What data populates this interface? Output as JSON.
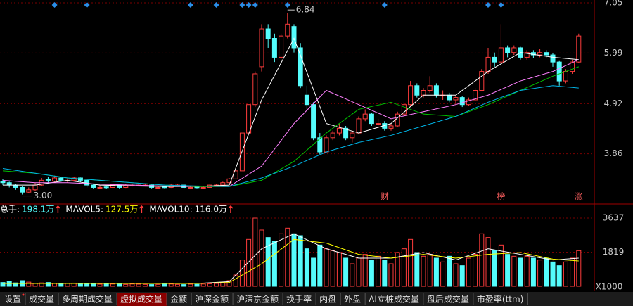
{
  "chart_data": {
    "type": "candlestick",
    "price": {
      "ohlc": [
        [
          3.28,
          3.32,
          3.2,
          3.25
        ],
        [
          3.25,
          3.27,
          3.15,
          3.2
        ],
        [
          3.2,
          3.22,
          3.1,
          3.15
        ],
        [
          3.15,
          3.17,
          3.0,
          3.05
        ],
        [
          3.05,
          3.15,
          3.03,
          3.1
        ],
        [
          3.1,
          3.25,
          3.08,
          3.2
        ],
        [
          3.2,
          3.35,
          3.18,
          3.3
        ],
        [
          3.32,
          3.38,
          3.25,
          3.3
        ],
        [
          3.28,
          3.4,
          3.26,
          3.35
        ],
        [
          3.35,
          3.37,
          3.27,
          3.3
        ],
        [
          3.3,
          3.34,
          3.25,
          3.3
        ],
        [
          3.3,
          3.38,
          3.28,
          3.35
        ],
        [
          3.35,
          3.36,
          3.26,
          3.3
        ],
        [
          3.3,
          3.31,
          3.15,
          3.2
        ],
        [
          3.2,
          3.22,
          3.12,
          3.15
        ],
        [
          3.15,
          3.2,
          3.12,
          3.15
        ],
        [
          3.16,
          3.18,
          3.12,
          3.15
        ],
        [
          3.15,
          3.23,
          3.14,
          3.2
        ],
        [
          3.2,
          3.21,
          3.13,
          3.15
        ],
        [
          3.15,
          3.22,
          3.14,
          3.2
        ],
        [
          3.2,
          3.22,
          3.17,
          3.2
        ],
        [
          3.19,
          3.23,
          3.17,
          3.2
        ],
        [
          3.2,
          3.22,
          3.17,
          3.2
        ],
        [
          3.2,
          3.21,
          3.13,
          3.15
        ],
        [
          3.15,
          3.18,
          3.13,
          3.15
        ],
        [
          3.16,
          3.18,
          3.13,
          3.15
        ],
        [
          3.15,
          3.22,
          3.14,
          3.2
        ],
        [
          3.2,
          3.22,
          3.17,
          3.2
        ],
        [
          3.2,
          3.21,
          3.13,
          3.15
        ],
        [
          3.15,
          3.17,
          3.12,
          3.15
        ],
        [
          3.16,
          3.18,
          3.13,
          3.15
        ],
        [
          3.15,
          3.17,
          3.13,
          3.15
        ],
        [
          3.15,
          3.22,
          3.14,
          3.2
        ],
        [
          3.2,
          3.22,
          3.17,
          3.2
        ],
        [
          3.2,
          3.27,
          3.18,
          3.25
        ],
        [
          3.25,
          3.35,
          3.24,
          3.33
        ],
        [
          3.33,
          3.55,
          3.32,
          3.5
        ],
        [
          3.5,
          4.3,
          3.5,
          4.3
        ],
        [
          4.3,
          4.9,
          4.3,
          4.9
        ],
        [
          4.9,
          5.6,
          4.85,
          5.55
        ],
        [
          5.7,
          6.6,
          5.6,
          6.5
        ],
        [
          6.5,
          6.6,
          6.1,
          6.3
        ],
        [
          6.3,
          6.4,
          5.8,
          5.9
        ],
        [
          5.9,
          6.4,
          5.85,
          6.35
        ],
        [
          6.35,
          6.84,
          6.3,
          6.6
        ],
        [
          6.55,
          6.6,
          6.0,
          6.1
        ],
        [
          6.1,
          6.2,
          5.25,
          5.3
        ],
        [
          5.1,
          5.3,
          4.8,
          4.9
        ],
        [
          4.9,
          4.95,
          4.15,
          4.2
        ],
        [
          4.2,
          4.3,
          3.85,
          3.9
        ],
        [
          3.9,
          4.25,
          3.88,
          4.2
        ],
        [
          4.2,
          4.35,
          4.15,
          4.3
        ],
        [
          4.3,
          4.5,
          4.25,
          4.4
        ],
        [
          4.4,
          4.45,
          4.15,
          4.2
        ],
        [
          4.2,
          4.35,
          4.1,
          4.3
        ],
        [
          4.3,
          4.65,
          4.28,
          4.6
        ],
        [
          4.6,
          4.8,
          4.55,
          4.7
        ],
        [
          4.7,
          4.72,
          4.45,
          4.5
        ],
        [
          4.5,
          4.6,
          4.4,
          4.5
        ],
        [
          4.5,
          4.55,
          4.35,
          4.4
        ],
        [
          4.4,
          4.5,
          4.35,
          4.45
        ],
        [
          4.45,
          4.75,
          4.42,
          4.7
        ],
        [
          4.7,
          4.95,
          4.68,
          4.9
        ],
        [
          4.9,
          5.4,
          4.88,
          5.3
        ],
        [
          5.3,
          5.35,
          5.05,
          5.1
        ],
        [
          5.1,
          5.25,
          5.05,
          5.2
        ],
        [
          5.2,
          5.5,
          5.15,
          5.3
        ],
        [
          5.3,
          5.35,
          5.05,
          5.1
        ],
        [
          5.1,
          5.2,
          5.0,
          5.1
        ],
        [
          5.1,
          5.15,
          4.95,
          5.0
        ],
        [
          5.0,
          5.1,
          4.9,
          5.05
        ],
        [
          5.05,
          5.08,
          4.85,
          4.9
        ],
        [
          4.9,
          5.05,
          4.88,
          5.0
        ],
        [
          5.0,
          5.25,
          4.98,
          5.2
        ],
        [
          5.2,
          5.65,
          5.18,
          5.6
        ],
        [
          5.6,
          6.1,
          5.55,
          5.9
        ],
        [
          5.9,
          6.0,
          5.7,
          5.8
        ],
        [
          5.8,
          6.6,
          5.78,
          6.1
        ],
        [
          6.1,
          6.15,
          5.9,
          6.0
        ],
        [
          6.0,
          6.15,
          5.95,
          6.1
        ],
        [
          6.1,
          6.12,
          5.85,
          5.9
        ],
        [
          5.9,
          6.05,
          5.85,
          6.0
        ],
        [
          6.0,
          6.05,
          5.88,
          5.95
        ],
        [
          5.95,
          6.08,
          5.9,
          6.0
        ],
        [
          6.0,
          6.05,
          5.9,
          5.95
        ],
        [
          5.95,
          5.98,
          5.7,
          5.8
        ],
        [
          5.8,
          5.82,
          5.3,
          5.4
        ],
        [
          5.4,
          5.65,
          5.35,
          5.6
        ],
        [
          5.6,
          5.85,
          5.55,
          5.8
        ],
        [
          5.8,
          6.4,
          5.78,
          6.35
        ]
      ],
      "ylim": [
        2.8,
        7.11
      ],
      "yticks": [
        7.05,
        5.99,
        4.92,
        3.86
      ],
      "up_color": "#ff3c3c",
      "down_color": "#54fcfc",
      "high_label": 6.84,
      "high_index": 44,
      "low_label": {
        "value": 3,
        "label": "3.00"
      },
      "low_index": 3,
      "ma": {
        "x": [
          0,
          5,
          10,
          15,
          20,
          25,
          30,
          35,
          40,
          45,
          50,
          55,
          60,
          65,
          70,
          75,
          80,
          85,
          89
        ],
        "series": [
          {
            "color": "#ffffff",
            "values": [
              3.2,
              3.2,
              3.3,
              3.2,
              3.18,
              3.17,
              3.17,
              3.2,
              5.0,
              6.3,
              4.5,
              4.3,
              4.5,
              5.1,
              5.1,
              5.6,
              6.0,
              5.9,
              5.85
            ]
          },
          {
            "color": "#ff80ff",
            "values": [
              3.3,
              3.25,
              3.25,
              3.22,
              3.2,
              3.18,
              3.17,
              3.17,
              3.6,
              4.5,
              5.2,
              4.9,
              4.6,
              4.75,
              4.9,
              5.1,
              5.4,
              5.6,
              5.85
            ]
          },
          {
            "color": "#00c000",
            "values": [
              3.5,
              3.45,
              3.35,
              3.3,
              3.25,
              3.2,
              3.17,
              3.17,
              3.3,
              3.7,
              4.3,
              4.8,
              4.95,
              4.7,
              4.65,
              4.9,
              5.2,
              5.5,
              5.7
            ]
          },
          {
            "color": "#00b4e6",
            "values": [
              3.55,
              3.45,
              3.35,
              3.3,
              3.25,
              3.2,
              3.18,
              3.17,
              3.35,
              3.6,
              3.9,
              4.1,
              4.25,
              4.45,
              4.65,
              4.95,
              5.2,
              5.3,
              5.25
            ]
          }
        ]
      }
    },
    "event_markers": [
      8,
      13,
      29,
      33,
      37,
      38,
      39,
      44,
      59,
      75,
      77
    ],
    "marker_color": "#2a8ee8",
    "tags": [
      {
        "index": 59,
        "label": "财"
      },
      {
        "index": 77,
        "label": "榜"
      },
      {
        "index": 89,
        "label": "涨"
      }
    ],
    "volume": {
      "values": [
        200,
        250,
        180,
        300,
        220,
        150,
        180,
        200,
        160,
        140,
        150,
        170,
        130,
        150,
        120,
        110,
        130,
        120,
        110,
        100,
        120,
        110,
        100,
        90,
        100,
        110,
        120,
        100,
        90,
        110,
        100,
        120,
        130,
        150,
        200,
        300,
        600,
        1400,
        2500,
        3637,
        3000,
        2600,
        2400,
        2800,
        3100,
        2800,
        2700,
        2000,
        1500,
        2200,
        2000,
        1900,
        1800,
        1500,
        1200,
        1500,
        1700,
        1400,
        1600,
        1400,
        1200,
        1800,
        2000,
        2500,
        1800,
        1600,
        1700,
        1500,
        1300,
        1600,
        1200,
        1100,
        1500,
        1700,
        2800,
        2600,
        1900,
        2200,
        1700,
        1600,
        1500,
        1600,
        1500,
        1400,
        1500,
        1300,
        1100,
        1300,
        1500,
        1900
      ],
      "ylim": [
        0,
        3937
      ],
      "yticks": [
        3637,
        1819
      ],
      "unit": "X1000",
      "ma": {
        "series": [
          {
            "color": "#ffffff",
            "values": [
              150,
              150,
              150,
              150,
              150,
              150,
              150,
              250,
              2000,
              2800,
              2000,
              1500,
              1500,
              1800,
              1400,
              2000,
              1700,
              1400,
              1500
            ]
          },
          {
            "color": "#ffff00",
            "values": [
              150,
              150,
              150,
              150,
              150,
              150,
              150,
              200,
              1200,
              2500,
              2300,
              1700,
              1500,
              1700,
              1500,
              1700,
              1800,
              1450,
              1350
            ]
          }
        ]
      },
      "legend": [
        {
          "label": "总手:",
          "value": "198.1万",
          "color": "#54fcfc"
        },
        {
          "label": "MAVOL5:",
          "value": "127.5万",
          "color": "#ffff00"
        },
        {
          "label": "MAVOL10:",
          "value": "116.0万",
          "color": "#ffffff"
        }
      ]
    }
  },
  "tabs": {
    "items": [
      "设置",
      "成交量",
      "多周期成交量",
      "虚拟成交量",
      "金额",
      "沪深金额",
      "沪深京金额",
      "换手率",
      "内盘",
      "外盘",
      "AI立桩成交量",
      "盘后成交量",
      "市盈率(ttm)"
    ],
    "active": 3
  }
}
